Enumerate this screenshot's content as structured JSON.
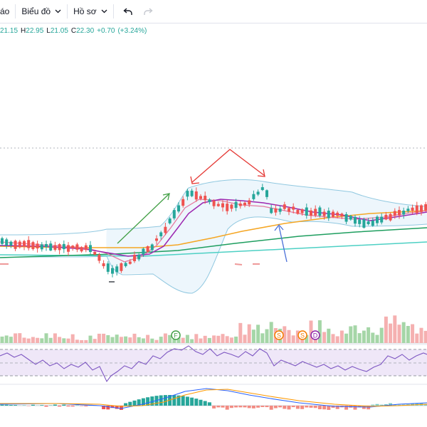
{
  "toolbar": {
    "truncated_label": "áo",
    "chart_type_label": "Biểu đồ",
    "profile_label": "Hồ sơ",
    "undo_icon": "undo-icon",
    "redo_icon": "redo-icon",
    "chevron_icon": "chevron-down-icon"
  },
  "ohlc": {
    "open_value": "21.15",
    "high_label": "H",
    "high_value": "22.95",
    "low_label": "L",
    "low_value": "21.05",
    "close_label": "C",
    "close_value": "22.30",
    "change_value": "+0.70",
    "change_percent": "(+3.24%)"
  },
  "markers": {
    "f": "F",
    "s1": "S",
    "s2": "S",
    "d": "D"
  },
  "colors": {
    "up": "#26a69a",
    "down": "#ef5350",
    "bb_upper": "#90c8e0",
    "bb_fill": "#e8f4fb",
    "ma_purple": "#9c27b0",
    "ma_pink": "#e57ba0",
    "ma_orange": "#f5a623",
    "ma_green": "#1e9e5f",
    "ma_teal": "#4dd0c4",
    "annot_red": "#e53935",
    "annot_green": "#43a047",
    "annot_blue": "#4a6fd8"
  }
}
